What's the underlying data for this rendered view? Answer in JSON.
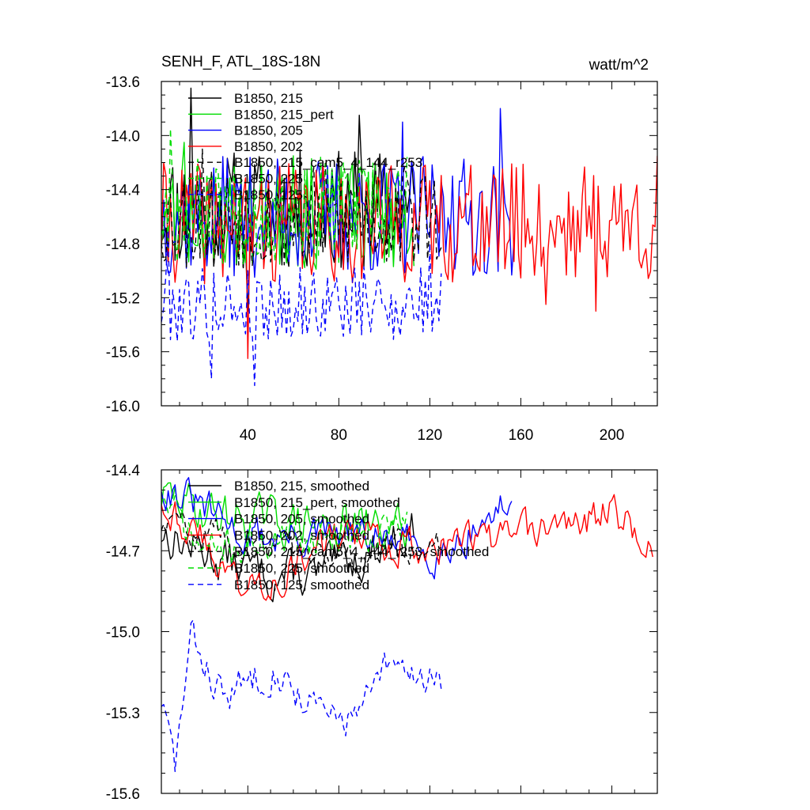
{
  "chart_data": [
    {
      "type": "line",
      "title": "SENH_F, ATL_18S-18N",
      "units": "watt/m^2",
      "xlim": [
        2,
        220
      ],
      "ylim": [
        -16.0,
        -13.6
      ],
      "xticks": [
        40,
        80,
        120,
        160,
        200
      ],
      "yticks": [
        -16.0,
        -15.6,
        -15.2,
        -14.8,
        -14.4,
        -14.0,
        -13.6
      ],
      "ytick_labels": [
        "-16.0",
        "-15.6",
        "-15.2",
        "-14.8",
        "-14.4",
        "-14.0",
        "-13.6"
      ],
      "xtick_labels": [
        "40",
        "80",
        "120",
        "160",
        "200"
      ],
      "series": [
        {
          "name": "B1850, 215",
          "color": "#000000",
          "dash": "solid",
          "x_start": 2,
          "x_end": 113,
          "base": -14.55,
          "amp": 0.45,
          "seed": 11,
          "peaks": [
            [
              15,
              -13.65
            ],
            [
              89,
              -13.85
            ],
            [
              40,
              -15.3
            ]
          ]
        },
        {
          "name": "B1850, 215_pert",
          "color": "#00dd00",
          "dash": "solid",
          "x_start": 2,
          "x_end": 113,
          "base": -14.6,
          "amp": 0.4,
          "seed": 23,
          "peaks": [
            [
              12,
              -14.05
            ],
            [
              60,
              -14.15
            ]
          ]
        },
        {
          "name": "B1850, 205",
          "color": "#0000ff",
          "dash": "solid",
          "x_start": 2,
          "x_end": 157,
          "base": -14.6,
          "amp": 0.45,
          "seed": 37,
          "peaks": [
            [
              108,
              -13.9
            ],
            [
              151,
              -13.8
            ],
            [
              130,
              -14.3
            ]
          ]
        },
        {
          "name": "B1850, 202",
          "color": "#ff0000",
          "dash": "solid",
          "x_start": 2,
          "x_end": 220,
          "base": -14.65,
          "amp": 0.45,
          "seed": 41,
          "peaks": [
            [
              40,
              -15.65
            ],
            [
              193,
              -15.3
            ],
            [
              220,
              -14.15
            ],
            [
              171,
              -15.25
            ]
          ]
        },
        {
          "name": "B1850, 215_cam5_4_144_r253",
          "color": "#000000",
          "dash": "dashed",
          "x_start": 2,
          "x_end": 125,
          "base": -14.6,
          "amp": 0.4,
          "seed": 53,
          "peaks": [
            [
              20,
              -14.1
            ],
            [
              108,
              -14.3
            ]
          ]
        },
        {
          "name": "B1850, 225",
          "color": "#00dd00",
          "dash": "dashed",
          "x_start": 2,
          "x_end": 110,
          "base": -14.55,
          "amp": 0.4,
          "seed": 67,
          "peaks": [
            [
              6,
              -13.95
            ],
            [
              80,
              -14.3
            ]
          ]
        },
        {
          "name": "B1850, 125",
          "color": "#0000ff",
          "dash": "dashed",
          "x_start": 2,
          "x_end": 125,
          "base": -15.25,
          "amp": 0.28,
          "seed": 79,
          "peaks": [
            [
              24,
              -15.8
            ],
            [
              43,
              -15.85
            ],
            [
              5,
              -14.7
            ],
            [
              120,
              -14.8
            ]
          ]
        }
      ]
    },
    {
      "type": "line",
      "title": "",
      "xlim": [
        2,
        220
      ],
      "ylim": [
        -15.6,
        -14.4
      ],
      "xticks": [
        40,
        80,
        120,
        160,
        200
      ],
      "yticks": [
        -15.6,
        -15.3,
        -15.0,
        -14.7,
        -14.4
      ],
      "ytick_labels": [
        "-15.6",
        "-15.3",
        "-15.0",
        "-14.7",
        "-14.4"
      ],
      "series": [
        {
          "name": "B1850, 215, smoothed",
          "color": "#000000",
          "dash": "solid",
          "x_start": 2,
          "x_end": 113,
          "base": -14.7,
          "amp": 0.07,
          "seed": 13,
          "trend": [
            [
              2,
              -14.63
            ],
            [
              20,
              -14.7
            ],
            [
              45,
              -14.78
            ],
            [
              70,
              -14.8
            ],
            [
              113,
              -14.62
            ]
          ]
        },
        {
          "name": "B1850, 215_pert, smoothed",
          "color": "#00dd00",
          "dash": "solid",
          "x_start": 2,
          "x_end": 110,
          "base": -14.6,
          "amp": 0.07,
          "seed": 29,
          "trend": [
            [
              2,
              -14.5
            ],
            [
              30,
              -14.57
            ],
            [
              60,
              -14.6
            ],
            [
              110,
              -14.62
            ]
          ]
        },
        {
          "name": "B1850, 205, smoothed",
          "color": "#0000ff",
          "dash": "solid",
          "x_start": 2,
          "x_end": 156,
          "base": -14.65,
          "amp": 0.06,
          "seed": 31,
          "trend": [
            [
              2,
              -14.45
            ],
            [
              40,
              -14.65
            ],
            [
              90,
              -14.65
            ],
            [
              125,
              -14.7
            ],
            [
              156,
              -14.52
            ]
          ]
        },
        {
          "name": "B1850, 202, smoothed",
          "color": "#ff0000",
          "dash": "solid",
          "x_start": 2,
          "x_end": 218,
          "base": -14.65,
          "amp": 0.06,
          "seed": 43,
          "trend": [
            [
              2,
              -14.5
            ],
            [
              40,
              -14.85
            ],
            [
              80,
              -14.65
            ],
            [
              120,
              -14.68
            ],
            [
              160,
              -14.65
            ],
            [
              200,
              -14.55
            ],
            [
              218,
              -14.7
            ]
          ]
        },
        {
          "name": "B1850, 215_cam5_4_144_r253, smoothed",
          "color": "#000000",
          "dash": "dashed",
          "x_start": 2,
          "x_end": 125,
          "base": -14.68,
          "amp": 0.05,
          "seed": 59,
          "trend": [
            [
              2,
              -14.6
            ],
            [
              50,
              -14.68
            ],
            [
              90,
              -14.72
            ],
            [
              125,
              -14.66
            ]
          ]
        },
        {
          "name": "B1850, 225, smoothed",
          "color": "#00dd00",
          "dash": "dashed",
          "x_start": 2,
          "x_end": 110,
          "base": -14.65,
          "amp": 0.06,
          "seed": 71,
          "trend": [
            [
              2,
              -14.5
            ],
            [
              20,
              -14.7
            ],
            [
              60,
              -14.65
            ],
            [
              110,
              -14.6
            ]
          ]
        },
        {
          "name": "B1850, 125, smoothed",
          "color": "#0000ff",
          "dash": "dashed",
          "x_start": 2,
          "x_end": 125,
          "base": -15.2,
          "amp": 0.06,
          "seed": 83,
          "trend": [
            [
              2,
              -15.25
            ],
            [
              8,
              -15.5
            ],
            [
              15,
              -15.03
            ],
            [
              30,
              -15.25
            ],
            [
              50,
              -15.12
            ],
            [
              75,
              -15.33
            ],
            [
              90,
              -15.3
            ],
            [
              100,
              -15.15
            ],
            [
              125,
              -15.16
            ]
          ]
        }
      ]
    }
  ]
}
